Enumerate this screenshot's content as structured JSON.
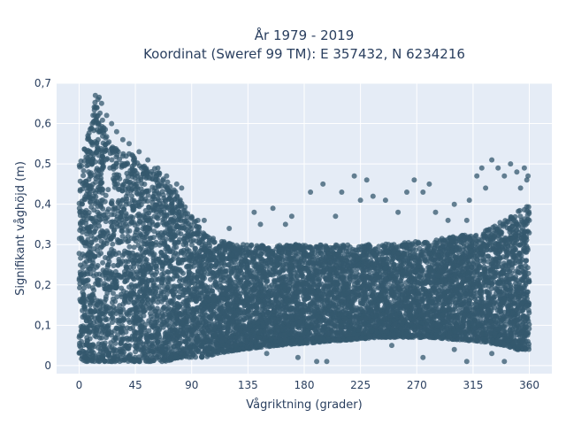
{
  "chart_data": {
    "type": "scatter",
    "title": [
      "År 1979 - 2019",
      "Koordinat (Sweref 99 TM): E 357432, N 6234216"
    ],
    "xlabel": "Vågriktning (grader)",
    "ylabel": "Signifikant våghöjd (m)",
    "xlim": [
      -18,
      378
    ],
    "ylim": [
      -0.02,
      0.7
    ],
    "xticks": [
      0,
      45,
      90,
      135,
      180,
      225,
      270,
      315,
      360
    ],
    "xtick_labels": [
      "0",
      "45",
      "90",
      "135",
      "180",
      "225",
      "270",
      "315",
      "360"
    ],
    "yticks": [
      0,
      0.1,
      0.2,
      0.3,
      0.4,
      0.5,
      0.6,
      0.7
    ],
    "ytick_labels": [
      "0",
      "0,1",
      "0,2",
      "0,3",
      "0,4",
      "0,5",
      "0,6",
      "0,7"
    ],
    "grid": true,
    "colors": {
      "marker": "#34586e",
      "plot_bg": "#e5ecf6",
      "grid": "#ffffff",
      "text": "#2a3f5f"
    },
    "envelope": [
      {
        "x": 0,
        "ymin": 0.02,
        "ymax": 0.5
      },
      {
        "x": 5,
        "ymin": 0.01,
        "ymax": 0.55
      },
      {
        "x": 10,
        "ymin": 0.01,
        "ymax": 0.6
      },
      {
        "x": 12,
        "ymin": 0.01,
        "ymax": 0.67
      },
      {
        "x": 15,
        "ymin": 0.01,
        "ymax": 0.64
      },
      {
        "x": 20,
        "ymin": 0.01,
        "ymax": 0.6
      },
      {
        "x": 25,
        "ymin": 0.01,
        "ymax": 0.56
      },
      {
        "x": 30,
        "ymin": 0.01,
        "ymax": 0.54
      },
      {
        "x": 40,
        "ymin": 0.01,
        "ymax": 0.53
      },
      {
        "x": 50,
        "ymin": 0.01,
        "ymax": 0.5
      },
      {
        "x": 60,
        "ymin": 0.01,
        "ymax": 0.49
      },
      {
        "x": 70,
        "ymin": 0.01,
        "ymax": 0.46
      },
      {
        "x": 80,
        "ymin": 0.02,
        "ymax": 0.42
      },
      {
        "x": 90,
        "ymin": 0.02,
        "ymax": 0.37
      },
      {
        "x": 100,
        "ymin": 0.02,
        "ymax": 0.33
      },
      {
        "x": 110,
        "ymin": 0.03,
        "ymax": 0.31
      },
      {
        "x": 130,
        "ymin": 0.04,
        "ymax": 0.3
      },
      {
        "x": 160,
        "ymin": 0.05,
        "ymax": 0.3
      },
      {
        "x": 200,
        "ymin": 0.06,
        "ymax": 0.3
      },
      {
        "x": 240,
        "ymin": 0.07,
        "ymax": 0.3
      },
      {
        "x": 280,
        "ymin": 0.07,
        "ymax": 0.31
      },
      {
        "x": 320,
        "ymin": 0.06,
        "ymax": 0.33
      },
      {
        "x": 340,
        "ymin": 0.05,
        "ymax": 0.36
      },
      {
        "x": 350,
        "ymin": 0.04,
        "ymax": 0.38
      },
      {
        "x": 360,
        "ymin": 0.04,
        "ymax": 0.4
      }
    ],
    "outliers": [
      {
        "x": 7,
        "y": 0.57
      },
      {
        "x": 13,
        "y": 0.67
      },
      {
        "x": 15,
        "y": 0.66
      },
      {
        "x": 16,
        "y": 0.665
      },
      {
        "x": 18,
        "y": 0.65
      },
      {
        "x": 22,
        "y": 0.62
      },
      {
        "x": 26,
        "y": 0.6
      },
      {
        "x": 30,
        "y": 0.58
      },
      {
        "x": 35,
        "y": 0.56
      },
      {
        "x": 40,
        "y": 0.55
      },
      {
        "x": 48,
        "y": 0.53
      },
      {
        "x": 55,
        "y": 0.51
      },
      {
        "x": 63,
        "y": 0.49
      },
      {
        "x": 70,
        "y": 0.47
      },
      {
        "x": 78,
        "y": 0.45
      },
      {
        "x": 82,
        "y": 0.44
      },
      {
        "x": 95,
        "y": 0.36
      },
      {
        "x": 100,
        "y": 0.36
      },
      {
        "x": 120,
        "y": 0.34
      },
      {
        "x": 140,
        "y": 0.38
      },
      {
        "x": 145,
        "y": 0.35
      },
      {
        "x": 155,
        "y": 0.39
      },
      {
        "x": 165,
        "y": 0.35
      },
      {
        "x": 170,
        "y": 0.37
      },
      {
        "x": 185,
        "y": 0.43
      },
      {
        "x": 195,
        "y": 0.45
      },
      {
        "x": 205,
        "y": 0.37
      },
      {
        "x": 210,
        "y": 0.43
      },
      {
        "x": 220,
        "y": 0.47
      },
      {
        "x": 225,
        "y": 0.41
      },
      {
        "x": 230,
        "y": 0.46
      },
      {
        "x": 235,
        "y": 0.42
      },
      {
        "x": 245,
        "y": 0.41
      },
      {
        "x": 255,
        "y": 0.38
      },
      {
        "x": 262,
        "y": 0.43
      },
      {
        "x": 268,
        "y": 0.46
      },
      {
        "x": 275,
        "y": 0.43
      },
      {
        "x": 280,
        "y": 0.45
      },
      {
        "x": 285,
        "y": 0.38
      },
      {
        "x": 295,
        "y": 0.36
      },
      {
        "x": 300,
        "y": 0.4
      },
      {
        "x": 310,
        "y": 0.36
      },
      {
        "x": 312,
        "y": 0.41
      },
      {
        "x": 318,
        "y": 0.47
      },
      {
        "x": 322,
        "y": 0.49
      },
      {
        "x": 325,
        "y": 0.44
      },
      {
        "x": 330,
        "y": 0.51
      },
      {
        "x": 335,
        "y": 0.49
      },
      {
        "x": 340,
        "y": 0.47
      },
      {
        "x": 345,
        "y": 0.5
      },
      {
        "x": 350,
        "y": 0.48
      },
      {
        "x": 353,
        "y": 0.44
      },
      {
        "x": 356,
        "y": 0.49
      },
      {
        "x": 358,
        "y": 0.46
      },
      {
        "x": 359,
        "y": 0.47
      },
      {
        "x": 150,
        "y": 0.03
      },
      {
        "x": 175,
        "y": 0.02
      },
      {
        "x": 190,
        "y": 0.01
      },
      {
        "x": 198,
        "y": 0.01
      },
      {
        "x": 250,
        "y": 0.05
      },
      {
        "x": 275,
        "y": 0.02
      },
      {
        "x": 300,
        "y": 0.04
      },
      {
        "x": 310,
        "y": 0.01
      },
      {
        "x": 330,
        "y": 0.03
      },
      {
        "x": 340,
        "y": 0.01
      }
    ]
  }
}
